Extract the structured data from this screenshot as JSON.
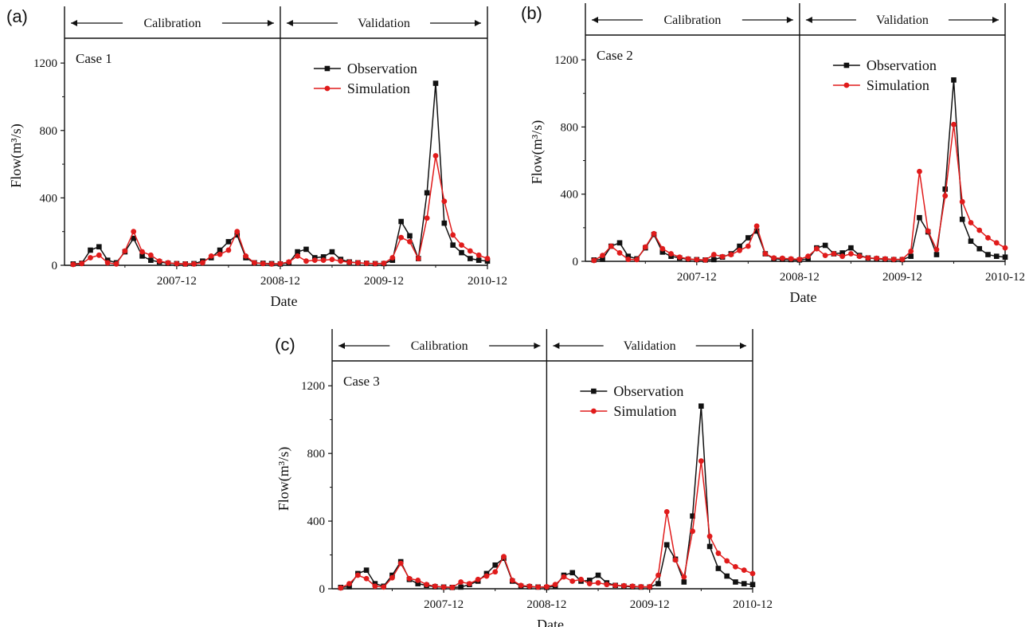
{
  "colors": {
    "observation": "#111111",
    "simulation": "#e01b1b",
    "axis": "#111111"
  },
  "chart_data": [
    {
      "type": "line",
      "panel": "(a)",
      "case_label": "Case 1",
      "xlabel": "Date",
      "ylabel": "Flow(m³/s)",
      "ylim": [
        0,
        1300
      ],
      "yticks": [
        0,
        400,
        800,
        1200
      ],
      "xlim": [
        "2006-11",
        "2010-12"
      ],
      "xticks": [
        {
          "date": "2007-12",
          "label": "2007-12"
        },
        {
          "date": "2008-12",
          "label": "2008-12"
        },
        {
          "date": "2009-12",
          "label": "2009-12"
        },
        {
          "date": "2010-12",
          "label": "2010-12"
        }
      ],
      "split_date": "2008-12",
      "periods": [
        "Calibration",
        "Validation"
      ],
      "legend": {
        "position": "top-right"
      },
      "grid": false,
      "x": [
        "2006-12",
        "2007-01",
        "2007-02",
        "2007-03",
        "2007-04",
        "2007-05",
        "2007-06",
        "2007-07",
        "2007-08",
        "2007-09",
        "2007-10",
        "2007-11",
        "2007-12",
        "2008-01",
        "2008-02",
        "2008-03",
        "2008-04",
        "2008-05",
        "2008-06",
        "2008-07",
        "2008-08",
        "2008-09",
        "2008-10",
        "2008-11",
        "2008-12",
        "2009-01",
        "2009-02",
        "2009-03",
        "2009-04",
        "2009-05",
        "2009-06",
        "2009-07",
        "2009-08",
        "2009-09",
        "2009-10",
        "2009-11",
        "2009-12",
        "2010-01",
        "2010-02",
        "2010-03",
        "2010-04",
        "2010-05",
        "2010-06",
        "2010-07",
        "2010-08",
        "2010-09",
        "2010-10",
        "2010-11",
        "2010-12"
      ],
      "series": [
        {
          "name": "Observation",
          "marker": "square",
          "values": [
            8,
            12,
            90,
            110,
            30,
            15,
            80,
            160,
            55,
            30,
            20,
            12,
            10,
            8,
            10,
            25,
            45,
            90,
            140,
            180,
            45,
            15,
            12,
            10,
            8,
            15,
            80,
            95,
            45,
            50,
            80,
            35,
            20,
            15,
            12,
            10,
            10,
            30,
            260,
            175,
            40,
            430,
            1080,
            250,
            120,
            75,
            40,
            30,
            25
          ]
        },
        {
          "name": "Simulation",
          "marker": "circle",
          "values": [
            5,
            10,
            45,
            60,
            15,
            8,
            85,
            200,
            80,
            60,
            25,
            15,
            10,
            8,
            8,
            15,
            55,
            65,
            90,
            200,
            55,
            15,
            10,
            8,
            10,
            20,
            55,
            25,
            30,
            30,
            35,
            25,
            18,
            15,
            12,
            10,
            12,
            45,
            165,
            140,
            40,
            280,
            650,
            380,
            180,
            120,
            85,
            60,
            40
          ]
        }
      ]
    },
    {
      "type": "line",
      "panel": "(b)",
      "case_label": "Case 2",
      "xlabel": "Date",
      "ylabel": "Flow(m³/s)",
      "ylim": [
        0,
        1300
      ],
      "yticks": [
        0,
        400,
        800,
        1200
      ],
      "xlim": [
        "2006-11",
        "2010-12"
      ],
      "xticks": [
        {
          "date": "2007-12",
          "label": "2007-12"
        },
        {
          "date": "2008-12",
          "label": "2008-12"
        },
        {
          "date": "2009-12",
          "label": "2009-12"
        },
        {
          "date": "2010-12",
          "label": "2010-12"
        }
      ],
      "split_date": "2008-12",
      "periods": [
        "Calibration",
        "Validation"
      ],
      "legend": {
        "position": "top-right"
      },
      "grid": false,
      "x": [
        "2006-12",
        "2007-01",
        "2007-02",
        "2007-03",
        "2007-04",
        "2007-05",
        "2007-06",
        "2007-07",
        "2007-08",
        "2007-09",
        "2007-10",
        "2007-11",
        "2007-12",
        "2008-01",
        "2008-02",
        "2008-03",
        "2008-04",
        "2008-05",
        "2008-06",
        "2008-07",
        "2008-08",
        "2008-09",
        "2008-10",
        "2008-11",
        "2008-12",
        "2009-01",
        "2009-02",
        "2009-03",
        "2009-04",
        "2009-05",
        "2009-06",
        "2009-07",
        "2009-08",
        "2009-09",
        "2009-10",
        "2009-11",
        "2009-12",
        "2010-01",
        "2010-02",
        "2010-03",
        "2010-04",
        "2010-05",
        "2010-06",
        "2010-07",
        "2010-08",
        "2010-09",
        "2010-10",
        "2010-11",
        "2010-12"
      ],
      "series": [
        {
          "name": "Observation",
          "marker": "square",
          "values": [
            8,
            12,
            90,
            110,
            30,
            15,
            80,
            160,
            55,
            30,
            20,
            12,
            10,
            8,
            10,
            25,
            45,
            90,
            140,
            180,
            45,
            15,
            12,
            10,
            8,
            15,
            80,
            95,
            45,
            50,
            80,
            35,
            20,
            15,
            12,
            10,
            10,
            30,
            260,
            175,
            40,
            430,
            1080,
            250,
            120,
            75,
            40,
            30,
            25
          ]
        },
        {
          "name": "Simulation",
          "marker": "circle",
          "values": [
            5,
            35,
            90,
            50,
            12,
            10,
            85,
            165,
            75,
            45,
            25,
            15,
            10,
            8,
            40,
            28,
            40,
            65,
            90,
            210,
            45,
            20,
            18,
            15,
            12,
            30,
            75,
            35,
            45,
            30,
            45,
            30,
            20,
            18,
            15,
            12,
            12,
            60,
            535,
            180,
            70,
            390,
            815,
            355,
            230,
            185,
            140,
            110,
            80
          ]
        }
      ]
    },
    {
      "type": "line",
      "panel": "(c)",
      "case_label": "Case 3",
      "xlabel": "Date",
      "ylabel": "Flow(m³/s)",
      "ylim": [
        0,
        1300
      ],
      "yticks": [
        0,
        400,
        800,
        1200
      ],
      "xlim": [
        "2006-11",
        "2010-12"
      ],
      "xticks": [
        {
          "date": "2007-12",
          "label": "2007-12"
        },
        {
          "date": "2008-12",
          "label": "2008-12"
        },
        {
          "date": "2009-12",
          "label": "2009-12"
        },
        {
          "date": "2010-12",
          "label": "2010-12"
        }
      ],
      "split_date": "2008-12",
      "periods": [
        "Calibration",
        "Validation"
      ],
      "legend": {
        "position": "top-right"
      },
      "grid": false,
      "x": [
        "2006-12",
        "2007-01",
        "2007-02",
        "2007-03",
        "2007-04",
        "2007-05",
        "2007-06",
        "2007-07",
        "2007-08",
        "2007-09",
        "2007-10",
        "2007-11",
        "2007-12",
        "2008-01",
        "2008-02",
        "2008-03",
        "2008-04",
        "2008-05",
        "2008-06",
        "2008-07",
        "2008-08",
        "2008-09",
        "2008-10",
        "2008-11",
        "2008-12",
        "2009-01",
        "2009-02",
        "2009-03",
        "2009-04",
        "2009-05",
        "2009-06",
        "2009-07",
        "2009-08",
        "2009-09",
        "2009-10",
        "2009-11",
        "2009-12",
        "2010-01",
        "2010-02",
        "2010-03",
        "2010-04",
        "2010-05",
        "2010-06",
        "2010-07",
        "2010-08",
        "2010-09",
        "2010-10",
        "2010-11",
        "2010-12"
      ],
      "series": [
        {
          "name": "Observation",
          "marker": "square",
          "values": [
            8,
            12,
            90,
            110,
            30,
            15,
            80,
            160,
            55,
            30,
            20,
            12,
            10,
            8,
            10,
            25,
            45,
            90,
            140,
            180,
            45,
            15,
            12,
            10,
            8,
            15,
            80,
            95,
            45,
            50,
            80,
            35,
            20,
            15,
            12,
            10,
            10,
            30,
            260,
            175,
            40,
            430,
            1080,
            250,
            120,
            75,
            40,
            30,
            25
          ]
        },
        {
          "name": "Simulation",
          "marker": "circle",
          "values": [
            5,
            30,
            80,
            60,
            15,
            10,
            65,
            150,
            60,
            50,
            25,
            15,
            10,
            8,
            40,
            30,
            55,
            75,
            100,
            190,
            50,
            20,
            15,
            10,
            12,
            25,
            70,
            45,
            55,
            30,
            35,
            25,
            20,
            18,
            15,
            12,
            12,
            80,
            455,
            170,
            70,
            340,
            755,
            310,
            210,
            165,
            130,
            110,
            90
          ]
        }
      ]
    }
  ]
}
